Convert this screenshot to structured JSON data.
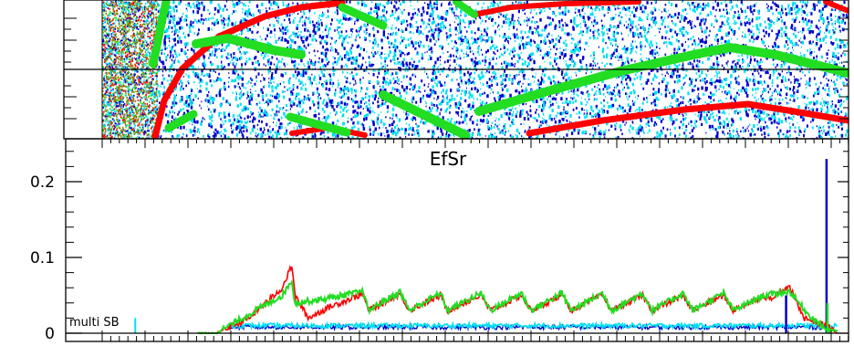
{
  "colors": {
    "red": "#ff0000",
    "green": "#22dd22",
    "blue": "#0000cc",
    "cyan": "#00e0f0",
    "frame": "#000000",
    "background": "#ffffff"
  },
  "chart_data": [
    {
      "type": "scatter",
      "panel": "top",
      "title": "",
      "xlabel": "",
      "ylabel": "",
      "grid": false,
      "tick_labels_shown": false,
      "series": [
        {
          "color": "#ff0000",
          "style": "dense diagonal band"
        },
        {
          "color": "#22dd22",
          "style": "dense diagonal band"
        },
        {
          "color": "#0000cc",
          "style": "scattered background"
        },
        {
          "color": "#00e0f0",
          "style": "scattered background"
        }
      ]
    },
    {
      "type": "line",
      "panel": "bottom",
      "title": "EfSr",
      "xlabel": "",
      "ylabel": "",
      "ylim": [
        0,
        0.25
      ],
      "xlim": [
        0,
        1
      ],
      "yticks": [
        {
          "value": 0,
          "label": "0"
        },
        {
          "value": 0.1,
          "label": "0.1"
        },
        {
          "value": 0.2,
          "label": "0.2"
        }
      ],
      "annotation": "multi SB",
      "grid": false,
      "series": [
        {
          "color": "#ff0000",
          "points": [
            [
              0.13,
              0.0
            ],
            [
              0.155,
              0.0
            ],
            [
              0.2,
              0.02
            ],
            [
              0.245,
              0.06
            ],
            [
              0.258,
              0.09
            ],
            [
              0.262,
              0.05
            ],
            [
              0.28,
              0.02
            ],
            [
              0.31,
              0.035
            ],
            [
              0.355,
              0.052
            ],
            [
              0.362,
              0.03
            ],
            [
              0.405,
              0.052
            ],
            [
              0.418,
              0.03
            ],
            [
              0.46,
              0.05
            ],
            [
              0.47,
              0.03
            ],
            [
              0.515,
              0.05
            ],
            [
              0.528,
              0.03
            ],
            [
              0.57,
              0.05
            ],
            [
              0.583,
              0.03
            ],
            [
              0.625,
              0.05
            ],
            [
              0.638,
              0.03
            ],
            [
              0.68,
              0.05
            ],
            [
              0.693,
              0.03
            ],
            [
              0.735,
              0.05
            ],
            [
              0.748,
              0.03
            ],
            [
              0.79,
              0.05
            ],
            [
              0.803,
              0.03
            ],
            [
              0.845,
              0.05
            ],
            [
              0.858,
              0.03
            ],
            [
              0.9,
              0.05
            ],
            [
              0.905,
              0.045
            ],
            [
              0.935,
              0.06
            ],
            [
              0.955,
              0.02
            ],
            [
              0.985,
              0.01
            ],
            [
              1.0,
              0.0
            ]
          ]
        },
        {
          "color": "#22dd22",
          "points": [
            [
              0.13,
              0.0
            ],
            [
              0.155,
              0.0
            ],
            [
              0.2,
              0.025
            ],
            [
              0.245,
              0.05
            ],
            [
              0.258,
              0.07
            ],
            [
              0.262,
              0.04
            ],
            [
              0.3,
              0.045
            ],
            [
              0.355,
              0.055
            ],
            [
              0.362,
              0.03
            ],
            [
              0.405,
              0.055
            ],
            [
              0.418,
              0.03
            ],
            [
              0.46,
              0.053
            ],
            [
              0.47,
              0.03
            ],
            [
              0.515,
              0.053
            ],
            [
              0.528,
              0.03
            ],
            [
              0.57,
              0.053
            ],
            [
              0.583,
              0.03
            ],
            [
              0.625,
              0.053
            ],
            [
              0.638,
              0.03
            ],
            [
              0.68,
              0.053
            ],
            [
              0.693,
              0.03
            ],
            [
              0.735,
              0.053
            ],
            [
              0.748,
              0.03
            ],
            [
              0.79,
              0.053
            ],
            [
              0.803,
              0.03
            ],
            [
              0.845,
              0.053
            ],
            [
              0.858,
              0.03
            ],
            [
              0.9,
              0.05
            ],
            [
              0.935,
              0.055
            ],
            [
              0.96,
              0.025
            ],
            [
              0.985,
              0.005
            ],
            [
              1.0,
              0.003
            ]
          ]
        },
        {
          "color": "#0000cc",
          "baseline": 0.008,
          "spikes": [
            [
              0.93,
              0.05
            ],
            [
              0.985,
              0.23
            ]
          ]
        },
        {
          "color": "#00e0f0",
          "baseline": 0.01,
          "spikes": [
            [
              0.045,
              0.02
            ]
          ]
        }
      ]
    }
  ]
}
